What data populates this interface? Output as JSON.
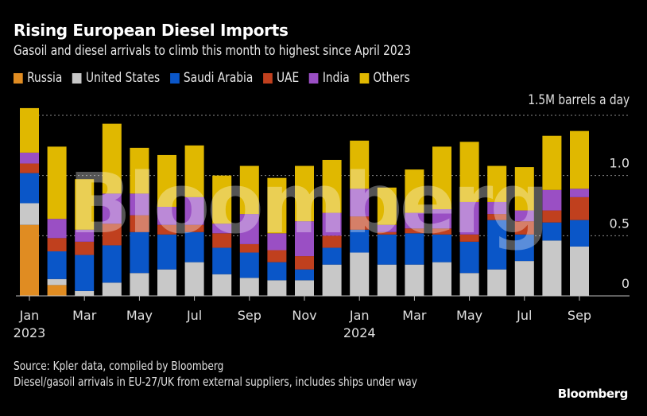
{
  "header": {
    "title": "Rising European Diesel Imports",
    "subtitle": "Gasoil and diesel arrivals to climb this month to highest since April 2023"
  },
  "legend": [
    {
      "name": "Russia",
      "color": "#e08c22"
    },
    {
      "name": "United States",
      "color": "#c8c8c8"
    },
    {
      "name": "Saudi Arabia",
      "color": "#0a56c8"
    },
    {
      "name": "UAE",
      "color": "#c0401e"
    },
    {
      "name": "India",
      "color": "#9a4fc4"
    },
    {
      "name": "Others",
      "color": "#e0b800"
    }
  ],
  "watermark": "Bloomberg",
  "chart_data": {
    "type": "bar",
    "stacked": true,
    "title": "Rising European Diesel Imports",
    "subtitle": "Gasoil and diesel arrivals to climb this month to highest since April 2023",
    "unit_label": "1.5M barrels a day",
    "ylabel": "M barrels a day",
    "ylim": [
      0,
      1.5
    ],
    "yticks": [
      {
        "value": 0,
        "label": "0"
      },
      {
        "value": 0.5,
        "label": "0.5"
      },
      {
        "value": 1.0,
        "label": "1.0"
      },
      {
        "value": 1.5,
        "label": "1.5M barrels a day"
      }
    ],
    "grid": true,
    "legend_position": "top-left",
    "categories": [
      "Jan 2023",
      "Feb 2023",
      "Mar 2023",
      "Apr 2023",
      "May 2023",
      "Jun 2023",
      "Jul 2023",
      "Aug 2023",
      "Sep 2023",
      "Oct 2023",
      "Nov 2023",
      "Dec 2023",
      "Jan 2024",
      "Feb 2024",
      "Mar 2024",
      "Apr 2024",
      "May 2024",
      "Jun 2024",
      "Jul 2024",
      "Aug 2024",
      "Sep 2024"
    ],
    "xtick_labels": [
      {
        "index": 0,
        "line1": "Jan",
        "line2": "2023"
      },
      {
        "index": 2,
        "line1": "Mar",
        "line2": ""
      },
      {
        "index": 4,
        "line1": "May",
        "line2": ""
      },
      {
        "index": 6,
        "line1": "Jul",
        "line2": ""
      },
      {
        "index": 8,
        "line1": "Sep",
        "line2": ""
      },
      {
        "index": 10,
        "line1": "Nov",
        "line2": ""
      },
      {
        "index": 12,
        "line1": "Jan",
        "line2": "2024"
      },
      {
        "index": 14,
        "line1": "Mar",
        "line2": ""
      },
      {
        "index": 16,
        "line1": "May",
        "line2": ""
      },
      {
        "index": 18,
        "line1": "Jul",
        "line2": ""
      },
      {
        "index": 20,
        "line1": "Sep",
        "line2": ""
      }
    ],
    "series": [
      {
        "name": "Russia",
        "color": "#e08c22",
        "values": [
          0.59,
          0.09,
          0,
          0,
          0,
          0,
          0,
          0,
          0,
          0,
          0,
          0,
          0,
          0,
          0,
          0,
          0,
          0,
          0,
          0,
          0
        ]
      },
      {
        "name": "United States",
        "color": "#c8c8c8",
        "values": [
          0.18,
          0.05,
          0.04,
          0.11,
          0.19,
          0.22,
          0.28,
          0.18,
          0.15,
          0.13,
          0.13,
          0.26,
          0.36,
          0.26,
          0.26,
          0.28,
          0.19,
          0.22,
          0.29,
          0.46,
          0.41
        ]
      },
      {
        "name": "Saudi Arabia",
        "color": "#0a56c8",
        "values": [
          0.25,
          0.23,
          0.3,
          0.31,
          0.34,
          0.29,
          0.25,
          0.22,
          0.21,
          0.15,
          0.09,
          0.14,
          0.19,
          0.25,
          0.26,
          0.23,
          0.26,
          0.41,
          0.22,
          0.15,
          0.22
        ]
      },
      {
        "name": "UAE",
        "color": "#c0401e",
        "values": [
          0.08,
          0.11,
          0.11,
          0.18,
          0.14,
          0.08,
          0.06,
          0.12,
          0.07,
          0.1,
          0.11,
          0.1,
          0.11,
          0.02,
          0.04,
          0.05,
          0.06,
          0.05,
          0.11,
          0.1,
          0.19
        ]
      },
      {
        "name": "India",
        "color": "#9a4fc4",
        "values": [
          0.09,
          0.16,
          0.1,
          0.25,
          0.18,
          0.15,
          0.23,
          0.08,
          0.25,
          0.14,
          0.29,
          0.19,
          0.23,
          0.06,
          0.13,
          0.16,
          0.27,
          0.1,
          0.09,
          0.17,
          0.07
        ]
      },
      {
        "name": "Others",
        "color": "#e0b800",
        "values": [
          0.37,
          0.6,
          0.42,
          0.58,
          0.38,
          0.43,
          0.43,
          0.4,
          0.4,
          0.46,
          0.46,
          0.44,
          0.4,
          0.31,
          0.36,
          0.52,
          0.5,
          0.3,
          0.36,
          0.45,
          0.48
        ]
      }
    ]
  },
  "footer": {
    "source": "Source: Kpler data, compiled by Bloomberg",
    "note": "Diesel/gasoil arrivals in EU-27/UK from external suppliers, includes ships under way",
    "brand": "Bloomberg"
  }
}
